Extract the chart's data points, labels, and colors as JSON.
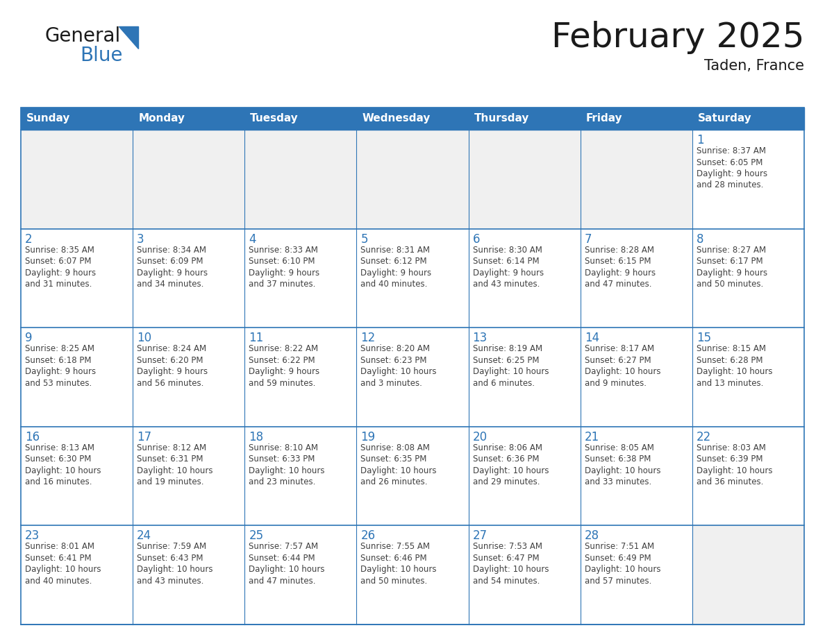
{
  "title": "February 2025",
  "subtitle": "Taden, France",
  "header_color": "#2E75B6",
  "header_text_color": "#FFFFFF",
  "cell_bg_color": "#FFFFFF",
  "empty_cell_bg_color": "#F0F0F0",
  "cell_border_color": "#2E75B6",
  "day_number_color": "#2E75B6",
  "text_color": "#404040",
  "bg_color": "#FFFFFF",
  "days_of_week": [
    "Sunday",
    "Monday",
    "Tuesday",
    "Wednesday",
    "Thursday",
    "Friday",
    "Saturday"
  ],
  "weeks": [
    [
      {
        "day": "",
        "info": ""
      },
      {
        "day": "",
        "info": ""
      },
      {
        "day": "",
        "info": ""
      },
      {
        "day": "",
        "info": ""
      },
      {
        "day": "",
        "info": ""
      },
      {
        "day": "",
        "info": ""
      },
      {
        "day": "1",
        "info": "Sunrise: 8:37 AM\nSunset: 6:05 PM\nDaylight: 9 hours\nand 28 minutes."
      }
    ],
    [
      {
        "day": "2",
        "info": "Sunrise: 8:35 AM\nSunset: 6:07 PM\nDaylight: 9 hours\nand 31 minutes."
      },
      {
        "day": "3",
        "info": "Sunrise: 8:34 AM\nSunset: 6:09 PM\nDaylight: 9 hours\nand 34 minutes."
      },
      {
        "day": "4",
        "info": "Sunrise: 8:33 AM\nSunset: 6:10 PM\nDaylight: 9 hours\nand 37 minutes."
      },
      {
        "day": "5",
        "info": "Sunrise: 8:31 AM\nSunset: 6:12 PM\nDaylight: 9 hours\nand 40 minutes."
      },
      {
        "day": "6",
        "info": "Sunrise: 8:30 AM\nSunset: 6:14 PM\nDaylight: 9 hours\nand 43 minutes."
      },
      {
        "day": "7",
        "info": "Sunrise: 8:28 AM\nSunset: 6:15 PM\nDaylight: 9 hours\nand 47 minutes."
      },
      {
        "day": "8",
        "info": "Sunrise: 8:27 AM\nSunset: 6:17 PM\nDaylight: 9 hours\nand 50 minutes."
      }
    ],
    [
      {
        "day": "9",
        "info": "Sunrise: 8:25 AM\nSunset: 6:18 PM\nDaylight: 9 hours\nand 53 minutes."
      },
      {
        "day": "10",
        "info": "Sunrise: 8:24 AM\nSunset: 6:20 PM\nDaylight: 9 hours\nand 56 minutes."
      },
      {
        "day": "11",
        "info": "Sunrise: 8:22 AM\nSunset: 6:22 PM\nDaylight: 9 hours\nand 59 minutes."
      },
      {
        "day": "12",
        "info": "Sunrise: 8:20 AM\nSunset: 6:23 PM\nDaylight: 10 hours\nand 3 minutes."
      },
      {
        "day": "13",
        "info": "Sunrise: 8:19 AM\nSunset: 6:25 PM\nDaylight: 10 hours\nand 6 minutes."
      },
      {
        "day": "14",
        "info": "Sunrise: 8:17 AM\nSunset: 6:27 PM\nDaylight: 10 hours\nand 9 minutes."
      },
      {
        "day": "15",
        "info": "Sunrise: 8:15 AM\nSunset: 6:28 PM\nDaylight: 10 hours\nand 13 minutes."
      }
    ],
    [
      {
        "day": "16",
        "info": "Sunrise: 8:13 AM\nSunset: 6:30 PM\nDaylight: 10 hours\nand 16 minutes."
      },
      {
        "day": "17",
        "info": "Sunrise: 8:12 AM\nSunset: 6:31 PM\nDaylight: 10 hours\nand 19 minutes."
      },
      {
        "day": "18",
        "info": "Sunrise: 8:10 AM\nSunset: 6:33 PM\nDaylight: 10 hours\nand 23 minutes."
      },
      {
        "day": "19",
        "info": "Sunrise: 8:08 AM\nSunset: 6:35 PM\nDaylight: 10 hours\nand 26 minutes."
      },
      {
        "day": "20",
        "info": "Sunrise: 8:06 AM\nSunset: 6:36 PM\nDaylight: 10 hours\nand 29 minutes."
      },
      {
        "day": "21",
        "info": "Sunrise: 8:05 AM\nSunset: 6:38 PM\nDaylight: 10 hours\nand 33 minutes."
      },
      {
        "day": "22",
        "info": "Sunrise: 8:03 AM\nSunset: 6:39 PM\nDaylight: 10 hours\nand 36 minutes."
      }
    ],
    [
      {
        "day": "23",
        "info": "Sunrise: 8:01 AM\nSunset: 6:41 PM\nDaylight: 10 hours\nand 40 minutes."
      },
      {
        "day": "24",
        "info": "Sunrise: 7:59 AM\nSunset: 6:43 PM\nDaylight: 10 hours\nand 43 minutes."
      },
      {
        "day": "25",
        "info": "Sunrise: 7:57 AM\nSunset: 6:44 PM\nDaylight: 10 hours\nand 47 minutes."
      },
      {
        "day": "26",
        "info": "Sunrise: 7:55 AM\nSunset: 6:46 PM\nDaylight: 10 hours\nand 50 minutes."
      },
      {
        "day": "27",
        "info": "Sunrise: 7:53 AM\nSunset: 6:47 PM\nDaylight: 10 hours\nand 54 minutes."
      },
      {
        "day": "28",
        "info": "Sunrise: 7:51 AM\nSunset: 6:49 PM\nDaylight: 10 hours\nand 57 minutes."
      },
      {
        "day": "",
        "info": ""
      }
    ]
  ]
}
